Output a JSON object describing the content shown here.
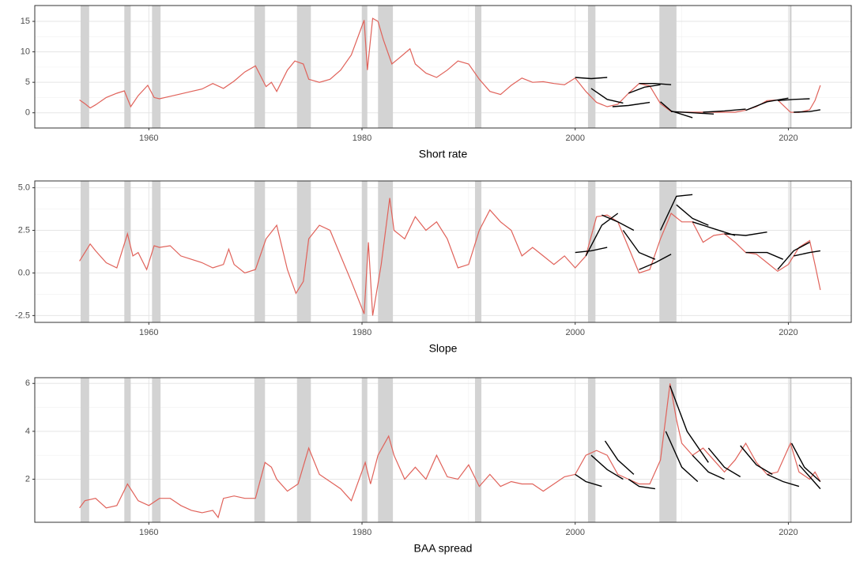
{
  "chart_data": [
    {
      "type": "line",
      "xlabel": "Short rate",
      "color": "#e0625a",
      "forecast_color": "#000000",
      "shade_color": "#d3d3d3",
      "xlim": [
        1949.3,
        2025.9
      ],
      "xticks": [
        1960,
        1980,
        2000,
        2020
      ],
      "ylim": [
        -2.5,
        17.6
      ],
      "yticks": [
        0,
        5,
        10,
        15
      ],
      "grid": true,
      "shaded_periods": [
        [
          1953.6,
          1954.4
        ],
        [
          1957.7,
          1958.3
        ],
        [
          1960.3,
          1961.1
        ],
        [
          1969.9,
          1970.9
        ],
        [
          1973.9,
          1975.2
        ],
        [
          1980.0,
          1980.5
        ],
        [
          1981.5,
          1982.9
        ],
        [
          1990.6,
          1991.2
        ],
        [
          2001.2,
          2001.9
        ],
        [
          2007.9,
          2009.5
        ],
        [
          2020.1,
          2020.3
        ]
      ],
      "x": [
        1953.5,
        1954,
        1954.5,
        1955,
        1956,
        1957,
        1957.7,
        1958.3,
        1959,
        1959.9,
        1960.5,
        1961,
        1962,
        1963,
        1964,
        1965,
        1966,
        1967,
        1968,
        1969,
        1970,
        1971,
        1971.5,
        1972,
        1973,
        1973.7,
        1974.5,
        1975,
        1976,
        1977,
        1978,
        1979,
        1980.2,
        1980.5,
        1981,
        1981.5,
        1982,
        1982.8,
        1983.5,
        1984.5,
        1985,
        1986,
        1987,
        1988,
        1989,
        1990,
        1991,
        1992,
        1993,
        1994,
        1995,
        1996,
        1997,
        1998,
        1999,
        2000,
        2001,
        2002,
        2003,
        2004,
        2005,
        2006,
        2007,
        2008,
        2009,
        2010,
        2012,
        2015,
        2016,
        2017,
        2018,
        2019,
        2020.2,
        2021,
        2022,
        2022.5,
        2023
      ],
      "values": [
        2.1,
        1.5,
        0.8,
        1.3,
        2.5,
        3.2,
        3.6,
        1.0,
        2.8,
        4.5,
        2.5,
        2.3,
        2.7,
        3.1,
        3.5,
        3.9,
        4.8,
        4.0,
        5.2,
        6.7,
        7.7,
        4.3,
        5.0,
        3.5,
        7.0,
        8.5,
        8.0,
        5.5,
        5.0,
        5.5,
        7.0,
        9.5,
        15.2,
        7.0,
        15.5,
        15.0,
        12.0,
        8.0,
        9.0,
        10.5,
        8.0,
        6.5,
        5.8,
        7.0,
        8.5,
        8.0,
        5.5,
        3.5,
        3.0,
        4.5,
        5.7,
        5.0,
        5.1,
        4.8,
        4.6,
        5.7,
        3.5,
        1.7,
        1.0,
        1.4,
        3.2,
        4.8,
        4.4,
        1.5,
        0.2,
        0.1,
        0.1,
        0.1,
        0.4,
        1.0,
        2.0,
        2.1,
        0.1,
        0.05,
        0.5,
        2.0,
        4.5
      ],
      "forecasts": [
        {
          "x": [
            2000,
            2001.5,
            2003
          ],
          "values": [
            5.8,
            5.6,
            5.8
          ]
        },
        {
          "x": [
            2001.5,
            2003,
            2004.5
          ],
          "values": [
            4.0,
            2.2,
            1.6
          ]
        },
        {
          "x": [
            2003.5,
            2005,
            2007
          ],
          "values": [
            1.0,
            1.2,
            1.7
          ]
        },
        {
          "x": [
            2005,
            2006.5,
            2008
          ],
          "values": [
            3.2,
            4.2,
            4.6
          ]
        },
        {
          "x": [
            2006,
            2007.5,
            2009
          ],
          "values": [
            4.8,
            4.8,
            4.6
          ]
        },
        {
          "x": [
            2008,
            2009,
            2011
          ],
          "values": [
            1.8,
            0.3,
            -0.8
          ]
        },
        {
          "x": [
            2009,
            2011,
            2013
          ],
          "values": [
            0.2,
            0.0,
            -0.2
          ]
        },
        {
          "x": [
            2012,
            2014,
            2016
          ],
          "values": [
            0.1,
            0.3,
            0.6
          ]
        },
        {
          "x": [
            2016,
            2018,
            2020
          ],
          "values": [
            0.4,
            1.8,
            2.4
          ]
        },
        {
          "x": [
            2019,
            2020.5,
            2022
          ],
          "values": [
            2.0,
            2.2,
            2.3
          ]
        },
        {
          "x": [
            2020.5,
            2022,
            2023
          ],
          "values": [
            0.1,
            0.2,
            0.5
          ]
        }
      ]
    },
    {
      "type": "line",
      "xlabel": "Slope",
      "color": "#e0625a",
      "forecast_color": "#000000",
      "shade_color": "#d3d3d3",
      "xlim": [
        1949.3,
        2025.9
      ],
      "xticks": [
        1960,
        1980,
        2000,
        2020
      ],
      "ylim": [
        -2.9,
        5.4
      ],
      "yticks": [
        -2.5,
        {
          "value": 0,
          "label": "0.0"
        },
        2.5,
        {
          "value": 5,
          "label": "5.0"
        }
      ],
      "grid": true,
      "shaded_periods": [
        [
          1953.6,
          1954.4
        ],
        [
          1957.7,
          1958.3
        ],
        [
          1960.3,
          1961.1
        ],
        [
          1969.9,
          1970.9
        ],
        [
          1973.9,
          1975.2
        ],
        [
          1980.0,
          1980.5
        ],
        [
          1981.5,
          1982.9
        ],
        [
          1990.6,
          1991.2
        ],
        [
          2001.2,
          2001.9
        ],
        [
          2007.9,
          2009.5
        ],
        [
          2020.1,
          2020.3
        ]
      ],
      "x": [
        1953.5,
        1954,
        1954.5,
        1955,
        1956,
        1957,
        1958,
        1958.5,
        1959,
        1959.8,
        1960.5,
        1961,
        1962,
        1963,
        1964,
        1965,
        1966,
        1967,
        1967.5,
        1968,
        1969,
        1970,
        1971,
        1972,
        1973,
        1973.8,
        1974.5,
        1975,
        1976,
        1977,
        1978,
        1979,
        1980.2,
        1980.6,
        1981,
        1981.8,
        1982.6,
        1983,
        1984,
        1985,
        1986,
        1987,
        1988,
        1989,
        1990,
        1991,
        1992,
        1993,
        1994,
        1995,
        1996,
        1997,
        1998,
        1999,
        2000,
        2001,
        2002,
        2003,
        2004,
        2005,
        2006,
        2007,
        2008,
        2009,
        2010,
        2011,
        2012,
        2013,
        2014,
        2015,
        2016,
        2017,
        2018,
        2019,
        2020,
        2021,
        2022,
        2022.5,
        2023
      ],
      "values": [
        0.7,
        1.2,
        1.7,
        1.3,
        0.6,
        0.3,
        2.3,
        1.0,
        1.2,
        0.2,
        1.6,
        1.5,
        1.6,
        1.0,
        0.8,
        0.6,
        0.3,
        0.5,
        1.4,
        0.5,
        0.0,
        0.2,
        2.0,
        2.8,
        0.2,
        -1.2,
        -0.5,
        2.0,
        2.8,
        2.5,
        1.0,
        -0.5,
        -2.4,
        1.8,
        -2.5,
        0.5,
        4.4,
        2.5,
        2.0,
        3.3,
        2.5,
        3.0,
        2.0,
        0.3,
        0.5,
        2.5,
        3.7,
        3.0,
        2.5,
        1.0,
        1.5,
        1.0,
        0.5,
        1.0,
        0.3,
        1.0,
        3.3,
        3.4,
        3.0,
        1.5,
        0.0,
        0.2,
        2.0,
        3.5,
        3.0,
        3.0,
        1.8,
        2.2,
        2.3,
        1.8,
        1.2,
        1.1,
        0.6,
        0.1,
        0.5,
        1.5,
        1.9,
        0.5,
        -1.0
      ],
      "forecasts": [
        {
          "x": [
            2000,
            2001.5,
            2003
          ],
          "values": [
            1.2,
            1.3,
            1.5
          ]
        },
        {
          "x": [
            2001,
            2002.5,
            2004
          ],
          "values": [
            1.0,
            2.8,
            3.5
          ]
        },
        {
          "x": [
            2002.5,
            2004,
            2005.5
          ],
          "values": [
            3.4,
            3.0,
            2.5
          ]
        },
        {
          "x": [
            2004.5,
            2006,
            2007.5
          ],
          "values": [
            2.5,
            1.2,
            0.8
          ]
        },
        {
          "x": [
            2006,
            2007.5,
            2009
          ],
          "values": [
            0.2,
            0.6,
            1.1
          ]
        },
        {
          "x": [
            2008,
            2009.5,
            2011
          ],
          "values": [
            2.5,
            4.5,
            4.6
          ]
        },
        {
          "x": [
            2009.5,
            2011,
            2012.5
          ],
          "values": [
            4.0,
            3.2,
            2.8
          ]
        },
        {
          "x": [
            2011,
            2013,
            2015
          ],
          "values": [
            3.0,
            2.6,
            2.2
          ]
        },
        {
          "x": [
            2014,
            2016,
            2018
          ],
          "values": [
            2.3,
            2.2,
            2.4
          ]
        },
        {
          "x": [
            2016,
            2018,
            2019.5
          ],
          "values": [
            1.2,
            1.2,
            0.8
          ]
        },
        {
          "x": [
            2019,
            2020.5,
            2022
          ],
          "values": [
            0.2,
            1.3,
            1.8
          ]
        },
        {
          "x": [
            2020.5,
            2022,
            2023
          ],
          "values": [
            1.0,
            1.2,
            1.3
          ]
        }
      ]
    },
    {
      "type": "line",
      "xlabel": "BAA spread",
      "color": "#e0625a",
      "forecast_color": "#000000",
      "shade_color": "#d3d3d3",
      "xlim": [
        1949.3,
        2025.9
      ],
      "xticks": [
        1960,
        1980,
        2000,
        2020
      ],
      "ylim": [
        0.2,
        6.24
      ],
      "yticks": [
        2,
        4,
        6
      ],
      "grid": true,
      "shaded_periods": [
        [
          1953.6,
          1954.4
        ],
        [
          1957.7,
          1958.3
        ],
        [
          1960.3,
          1961.1
        ],
        [
          1969.9,
          1970.9
        ],
        [
          1973.9,
          1975.2
        ],
        [
          1980.0,
          1980.5
        ],
        [
          1981.5,
          1982.9
        ],
        [
          1990.6,
          1991.2
        ],
        [
          2001.2,
          2001.9
        ],
        [
          2007.9,
          2009.5
        ],
        [
          2020.1,
          2020.3
        ]
      ],
      "x": [
        1953.5,
        1954,
        1955,
        1956,
        1957,
        1958,
        1959,
        1960,
        1961,
        1962,
        1963,
        1964,
        1965,
        1966,
        1966.5,
        1967,
        1968,
        1969,
        1970,
        1970.9,
        1971.5,
        1972,
        1973,
        1974,
        1975,
        1976,
        1977,
        1978,
        1979,
        1980.3,
        1980.8,
        1981.5,
        1982.5,
        1983,
        1984,
        1985,
        1986,
        1987,
        1988,
        1989,
        1990,
        1991,
        1992,
        1993,
        1994,
        1995,
        1996,
        1997,
        1998,
        1999,
        2000,
        2001,
        2002,
        2003,
        2004,
        2005,
        2006,
        2007,
        2008,
        2008.9,
        2009.5,
        2010,
        2011,
        2012,
        2013,
        2014,
        2015,
        2016,
        2017,
        2018,
        2019,
        2020.2,
        2021,
        2022,
        2022.5,
        2023
      ],
      "values": [
        0.8,
        1.1,
        1.2,
        0.8,
        0.9,
        1.8,
        1.1,
        0.9,
        1.2,
        1.2,
        0.9,
        0.7,
        0.6,
        0.7,
        0.4,
        1.2,
        1.3,
        1.2,
        1.2,
        2.7,
        2.5,
        2.0,
        1.5,
        1.8,
        3.3,
        2.2,
        1.9,
        1.6,
        1.1,
        2.7,
        1.8,
        3.0,
        3.8,
        3.0,
        2.0,
        2.5,
        2.0,
        3.0,
        2.1,
        2.0,
        2.6,
        1.7,
        2.2,
        1.7,
        1.9,
        1.8,
        1.8,
        1.5,
        1.8,
        2.1,
        2.2,
        3.0,
        3.2,
        3.0,
        2.2,
        2.0,
        1.8,
        1.8,
        2.8,
        6.0,
        4.5,
        3.5,
        3.0,
        3.3,
        2.8,
        2.3,
        2.8,
        3.5,
        2.7,
        2.2,
        2.3,
        3.5,
        2.3,
        2.0,
        2.3,
        1.9
      ],
      "forecasts": [
        {
          "x": [
            2000,
            2001,
            2002.5
          ],
          "values": [
            2.2,
            1.9,
            1.7
          ]
        },
        {
          "x": [
            2001.5,
            2003,
            2004.5
          ],
          "values": [
            3.0,
            2.4,
            2.0
          ]
        },
        {
          "x": [
            2002.8,
            2004,
            2005.5
          ],
          "values": [
            3.6,
            2.8,
            2.2
          ]
        },
        {
          "x": [
            2005,
            2006,
            2007.5
          ],
          "values": [
            2.0,
            1.7,
            1.6
          ]
        },
        {
          "x": [
            2008.5,
            2010,
            2011.5
          ],
          "values": [
            4.0,
            2.5,
            1.9
          ]
        },
        {
          "x": [
            2008.9,
            2010.5,
            2012.5
          ],
          "values": [
            5.9,
            4.0,
            2.7
          ]
        },
        {
          "x": [
            2011,
            2012.5,
            2014
          ],
          "values": [
            3.0,
            2.3,
            2.0
          ]
        },
        {
          "x": [
            2012.5,
            2014,
            2015.5
          ],
          "values": [
            3.3,
            2.5,
            2.1
          ]
        },
        {
          "x": [
            2015.5,
            2017,
            2018.5
          ],
          "values": [
            3.4,
            2.6,
            2.2
          ]
        },
        {
          "x": [
            2018,
            2019.5,
            2021
          ],
          "values": [
            2.2,
            1.9,
            1.7
          ]
        },
        {
          "x": [
            2020.3,
            2021.5,
            2023
          ],
          "values": [
            3.5,
            2.5,
            1.9
          ]
        },
        {
          "x": [
            2021,
            2022,
            2023
          ],
          "values": [
            2.6,
            2.1,
            1.6
          ]
        }
      ]
    }
  ]
}
